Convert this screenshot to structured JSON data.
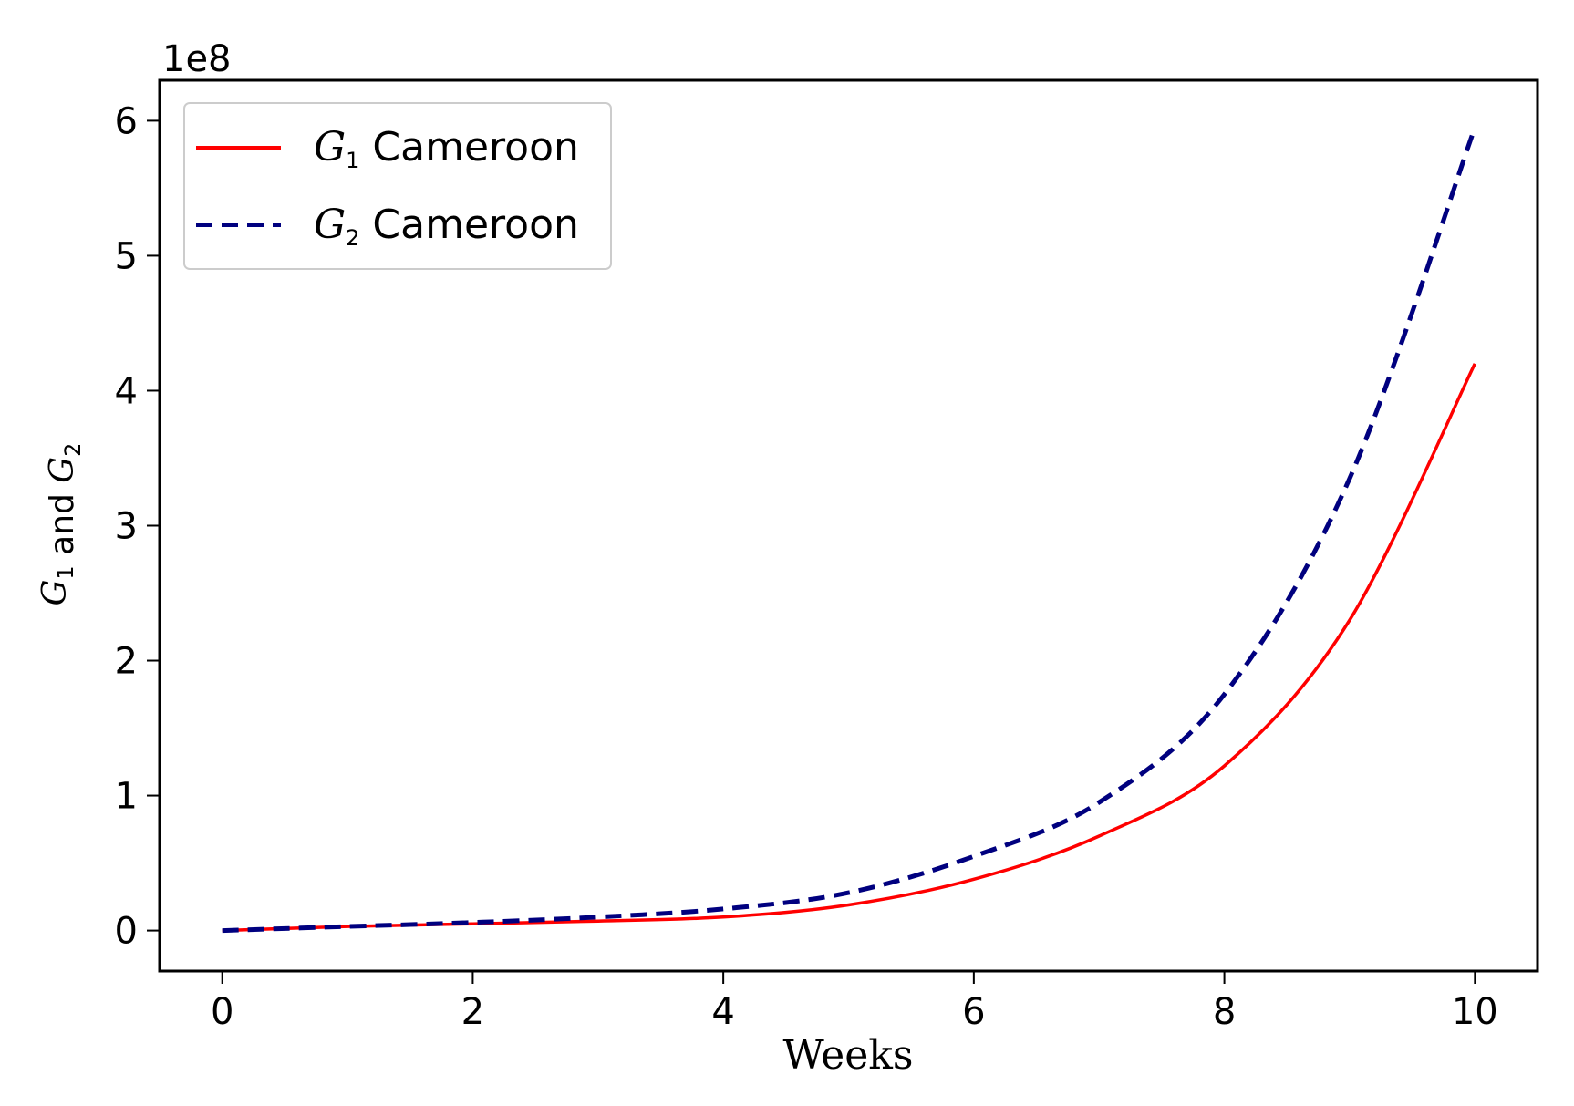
{
  "chart_data": {
    "type": "line",
    "title": "",
    "xlabel": "Weeks",
    "ylabel": {
      "parts": [
        {
          "text": "G",
          "italic": true
        },
        {
          "text": "1",
          "sub": true
        },
        {
          "text": " and "
        },
        {
          "text": "G",
          "italic": true
        },
        {
          "text": "2",
          "sub": true
        }
      ]
    },
    "y_offset_label": "1e8",
    "xlim": [
      -0.5,
      10.5
    ],
    "ylim": [
      -0.3,
      6.3
    ],
    "x_ticks": [
      0,
      2,
      4,
      6,
      8,
      10
    ],
    "x_tick_labels": [
      "0",
      "2",
      "4",
      "6",
      "8",
      "10"
    ],
    "y_ticks": [
      0,
      1,
      2,
      3,
      4,
      5,
      6
    ],
    "y_tick_labels": [
      "0",
      "1",
      "2",
      "3",
      "4",
      "5",
      "6"
    ],
    "grid": false,
    "legend_position": "upper-left",
    "series": [
      {
        "name": {
          "base": "G",
          "sub": "1",
          "rest": " Cameroon"
        },
        "color": "#ff0000",
        "dash": "solid",
        "x": [
          0,
          1,
          2,
          3,
          4,
          5,
          6,
          7,
          8,
          9,
          10
        ],
        "y": [
          0.0,
          0.03,
          0.05,
          0.07,
          0.1,
          0.19,
          0.38,
          0.7,
          1.22,
          2.3,
          4.2
        ]
      },
      {
        "name": {
          "base": "G",
          "sub": "2",
          "rest": " Cameroon"
        },
        "color": "#00007f",
        "dash": "dashed",
        "x": [
          0,
          1,
          2,
          3,
          4,
          5,
          6,
          7,
          8,
          9,
          10
        ],
        "y": [
          0.0,
          0.03,
          0.06,
          0.1,
          0.16,
          0.28,
          0.55,
          0.95,
          1.75,
          3.35,
          5.95
        ]
      }
    ]
  }
}
